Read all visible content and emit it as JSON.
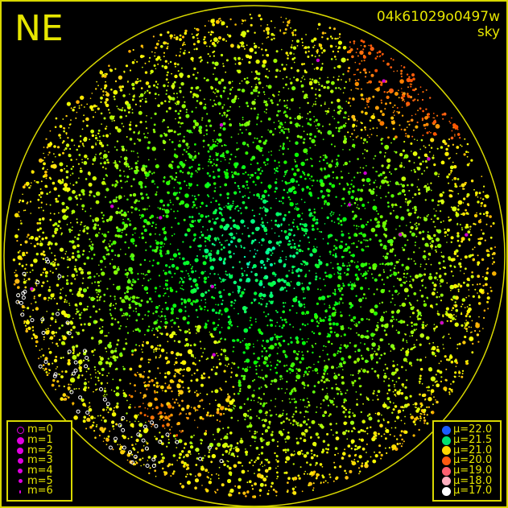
{
  "direction_label": "NE",
  "observation_id": "04k61029o0497w",
  "image_type": "sky",
  "colors": {
    "frame": "#d8d800",
    "text": "#e6e600",
    "magnitude_symbol": "#e000e0"
  },
  "magnitude_legend": [
    {
      "label": "m=0",
      "style": "ring"
    },
    {
      "label": "m=1"
    },
    {
      "label": "m=2"
    },
    {
      "label": "m=3"
    },
    {
      "label": "m=4"
    },
    {
      "label": "m=5"
    },
    {
      "label": "m=6"
    }
  ],
  "surface_brightness_legend": [
    {
      "label": "μ=22.0",
      "color": "#1a5cff"
    },
    {
      "label": "μ=21.5",
      "color": "#00e070"
    },
    {
      "label": "μ=21.0",
      "color": "#ffd800"
    },
    {
      "label": "μ=20.0",
      "color": "#ff5a10"
    },
    {
      "label": "μ=19.0",
      "color": "#ff6070"
    },
    {
      "label": "μ=18.0",
      "color": "#ffb0c0"
    },
    {
      "label": "μ=17.0",
      "color": "#ffffff"
    }
  ]
}
